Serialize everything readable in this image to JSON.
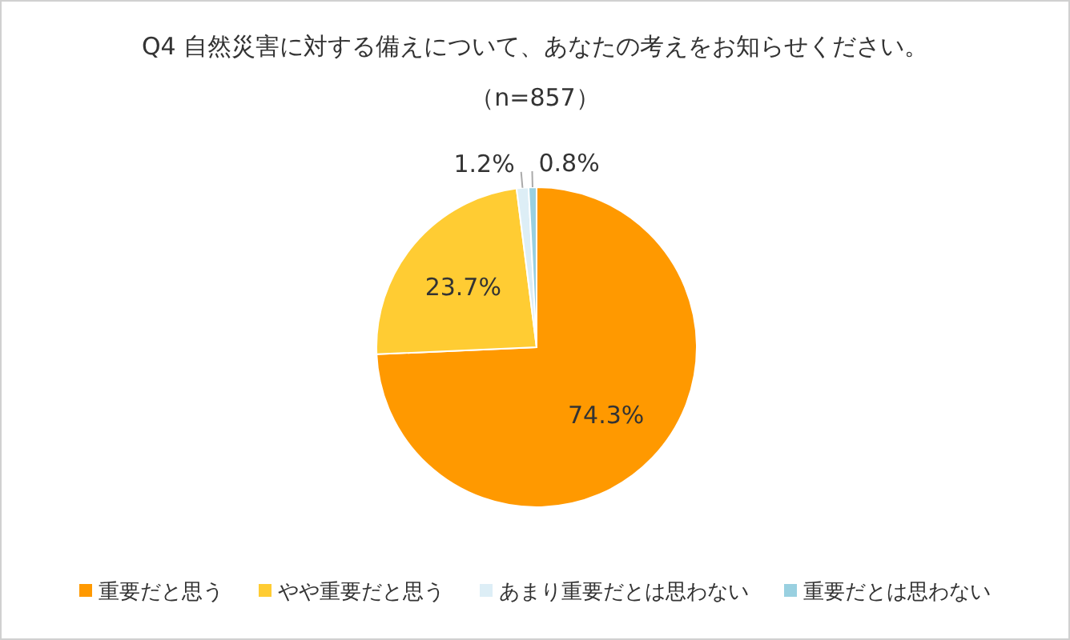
{
  "chart_data": {
    "type": "pie",
    "title": "Q4 自然災害に対する備えについて、あなたの考えをお知らせください。",
    "subtitle": "（n=857）",
    "categories": [
      "重要だと思う",
      "やや重要だと思う",
      "あまり重要だとは思わない",
      "重要だとは思わない"
    ],
    "values": [
      74.3,
      23.7,
      1.2,
      0.8
    ],
    "colors": [
      "#ff9900",
      "#ffcc33",
      "#ddeef6",
      "#99d0e0"
    ],
    "value_labels": [
      "74.3%",
      "23.7%",
      "1.2%",
      "0.8%"
    ],
    "legend": "bottom"
  }
}
